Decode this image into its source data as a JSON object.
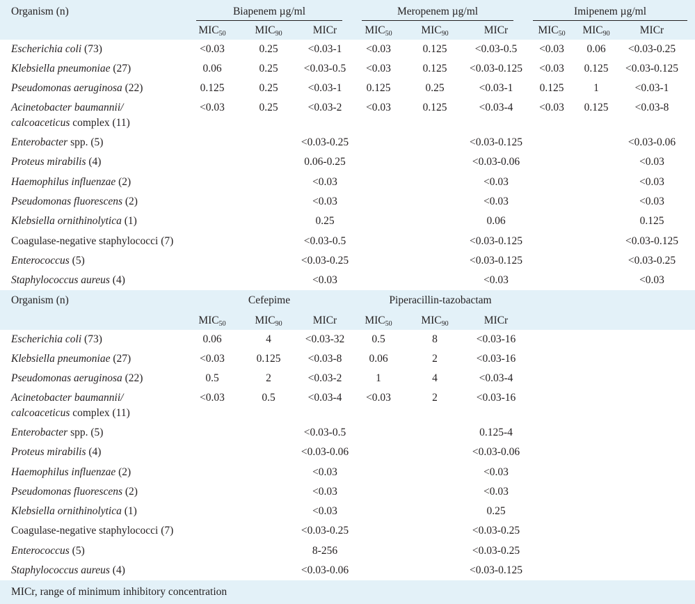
{
  "colors": {
    "header_band": "#e3f1f8",
    "text": "#231f20"
  },
  "table1": {
    "organism_header": "Organism (n)",
    "groups": [
      "Biapenem µg/ml",
      "Meropenem µg/ml",
      "Imipenem µg/ml"
    ],
    "sub": [
      "MIC",
      "MIC",
      "MICr"
    ],
    "sub50": "50",
    "sub90": "90",
    "rows": [
      {
        "org": "Escherichia coli",
        "tail": " (73)",
        "v": [
          "<0.03",
          "0.25",
          "<0.03-1",
          "<0.03",
          "0.125",
          "<0.03-0.5",
          "<0.03",
          "0.06",
          "<0.03-0.25"
        ]
      },
      {
        "org": "Klebsiella pneumoniae",
        "tail": " (27)",
        "v": [
          "0.06",
          "0.25",
          "<0.03-0.5",
          "<0.03",
          "0.125",
          "<0.03-0.125",
          "<0.03",
          "0.125",
          "<0.03-0.125"
        ]
      },
      {
        "org": "Pseudomonas aeruginosa",
        "tail": " (22)",
        "v": [
          "0.125",
          "0.25",
          "<0.03-1",
          "0.125",
          "0.25",
          "<0.03-1",
          "0.125",
          "1",
          "<0.03-1"
        ]
      },
      {
        "org": "Acinetobacter baumannii/",
        "org_line2": "calcoaceticus",
        "tail": " complex (11)",
        "v": [
          "<0.03",
          "0.25",
          "<0.03-2",
          "<0.03",
          "0.125",
          "<0.03-4",
          "<0.03",
          "0.125",
          "<0.03-8"
        ]
      },
      {
        "org": "Enterobacter",
        "tail": " spp. (5)",
        "r": [
          "<0.03-0.25",
          "<0.03-0.125",
          "<0.03-0.06"
        ]
      },
      {
        "org": "Proteus mirabilis",
        "tail": " (4)",
        "r": [
          "0.06-0.25",
          "<0.03-0.06",
          "<0.03"
        ]
      },
      {
        "org": "Haemophilus influenzae",
        "tail": " (2)",
        "r": [
          "<0.03",
          "<0.03",
          "<0.03"
        ]
      },
      {
        "org": "Pseudomonas fluorescens",
        "tail": " (2)",
        "r": [
          "<0.03",
          "<0.03",
          "<0.03"
        ]
      },
      {
        "org": "Klebsiella ornithinolytica",
        "tail": " (1)",
        "r": [
          "0.25",
          "0.06",
          "0.125"
        ]
      },
      {
        "org": "",
        "tail": "Coagulase-negative staphylococci (7)",
        "r": [
          "<0.03-0.5",
          "<0.03-0.125",
          "<0.03-0.125"
        ]
      },
      {
        "org": "Enterococcus",
        "tail": " (5)",
        "r": [
          "<0.03-0.25",
          "<0.03-0.125",
          "<0.03-0.25"
        ]
      },
      {
        "org": "Staphylococcus aureus",
        "tail": " (4)",
        "r": [
          "<0.03",
          "<0.03",
          "<0.03"
        ]
      }
    ]
  },
  "table2": {
    "organism_header": "Organism (n)",
    "groups": [
      "Cefepime",
      "Piperacillin-tazobactam"
    ],
    "rows": [
      {
        "org": "Escherichia coli",
        "tail": " (73)",
        "v": [
          "0.06",
          "4",
          "<0.03-32",
          "0.5",
          "8",
          "<0.03-16"
        ]
      },
      {
        "org": "Klebsiella pneumoniae",
        "tail": " (27)",
        "v": [
          "<0.03",
          "0.125",
          "<0.03-8",
          "0.06",
          "2",
          "<0.03-16"
        ]
      },
      {
        "org": "Pseudomonas aeruginosa",
        "tail": " (22)",
        "v": [
          "0.5",
          "2",
          "<0.03-2",
          "1",
          "4",
          "<0.03-4"
        ]
      },
      {
        "org": "Acinetobacter baumannii/",
        "org_line2": "calcoaceticus",
        "tail": " complex (11)",
        "v": [
          "<0.03",
          "0.5",
          "<0.03-4",
          "<0.03",
          "2",
          "<0.03-16"
        ]
      },
      {
        "org": "Enterobacter",
        "tail": " spp. (5)",
        "r": [
          "<0.03-0.5",
          "0.125-4"
        ]
      },
      {
        "org": "Proteus mirabilis",
        "tail": " (4)",
        "r": [
          "<0.03-0.06",
          "<0.03-0.06"
        ]
      },
      {
        "org": "Haemophilus influenzae",
        "tail": " (2)",
        "r": [
          "<0.03",
          "<0.03"
        ]
      },
      {
        "org": "Pseudomonas fluorescens",
        "tail": " (2)",
        "r": [
          "<0.03",
          "<0.03"
        ]
      },
      {
        "org": "Klebsiella ornithinolytica",
        "tail": " (1)",
        "r": [
          "<0.03",
          "0.25"
        ]
      },
      {
        "org": "",
        "tail": "Coagulase-negative staphylococci (7)",
        "r": [
          "<0.03-0.25",
          "<0.03-0.25"
        ]
      },
      {
        "org": "Enterococcus",
        "tail": " (5)",
        "r": [
          "8-256",
          "<0.03-0.25"
        ]
      },
      {
        "org": "Staphylococcus aureus",
        "tail": " (4)",
        "r": [
          "<0.03-0.06",
          "<0.03-0.125"
        ]
      }
    ]
  },
  "footnote": "MICr, range of minimum inhibitory concentration"
}
